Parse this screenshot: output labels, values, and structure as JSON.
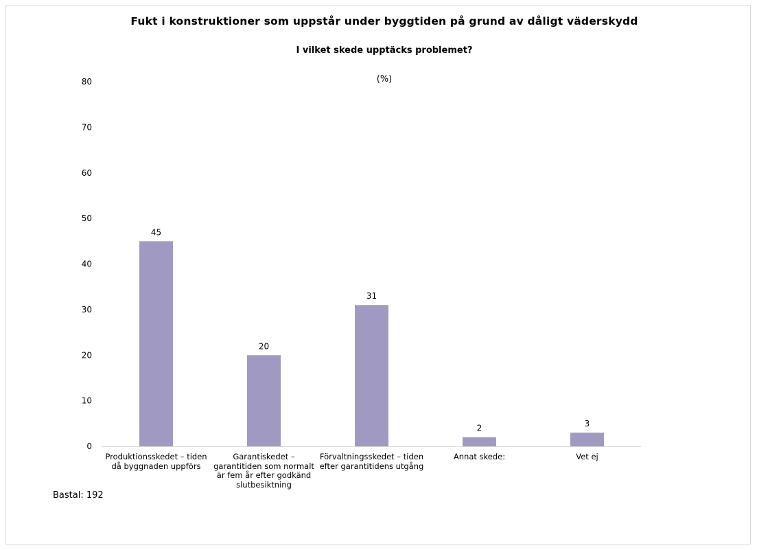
{
  "chart_data": {
    "type": "bar",
    "title": "Fukt i konstruktioner som uppstår under byggtiden på grund av dåligt väderskydd",
    "subtitle": "I vilket skede upptäcks problemet?",
    "unit_label": "(%)",
    "categories": [
      "Produktionsskedet – tiden då byggnaden uppförs",
      "Garantiskedet – garantitiden som normalt är fem år efter godkänd slutbesiktning",
      "Förvaltningsskedet – tiden efter garantitidens utgång",
      "Annat skede:",
      "Vet ej"
    ],
    "values": [
      45,
      20,
      31,
      2,
      3
    ],
    "data_labels": [
      "45",
      "20",
      "31",
      "2",
      "3"
    ],
    "ylim": [
      0,
      80
    ],
    "yticks": [
      "0",
      "10",
      "20",
      "30",
      "40",
      "50",
      "60",
      "70",
      "80"
    ],
    "bar_color": "#a09ac2",
    "grid": false,
    "legend": "none"
  },
  "footnote": "Bastal: 192"
}
